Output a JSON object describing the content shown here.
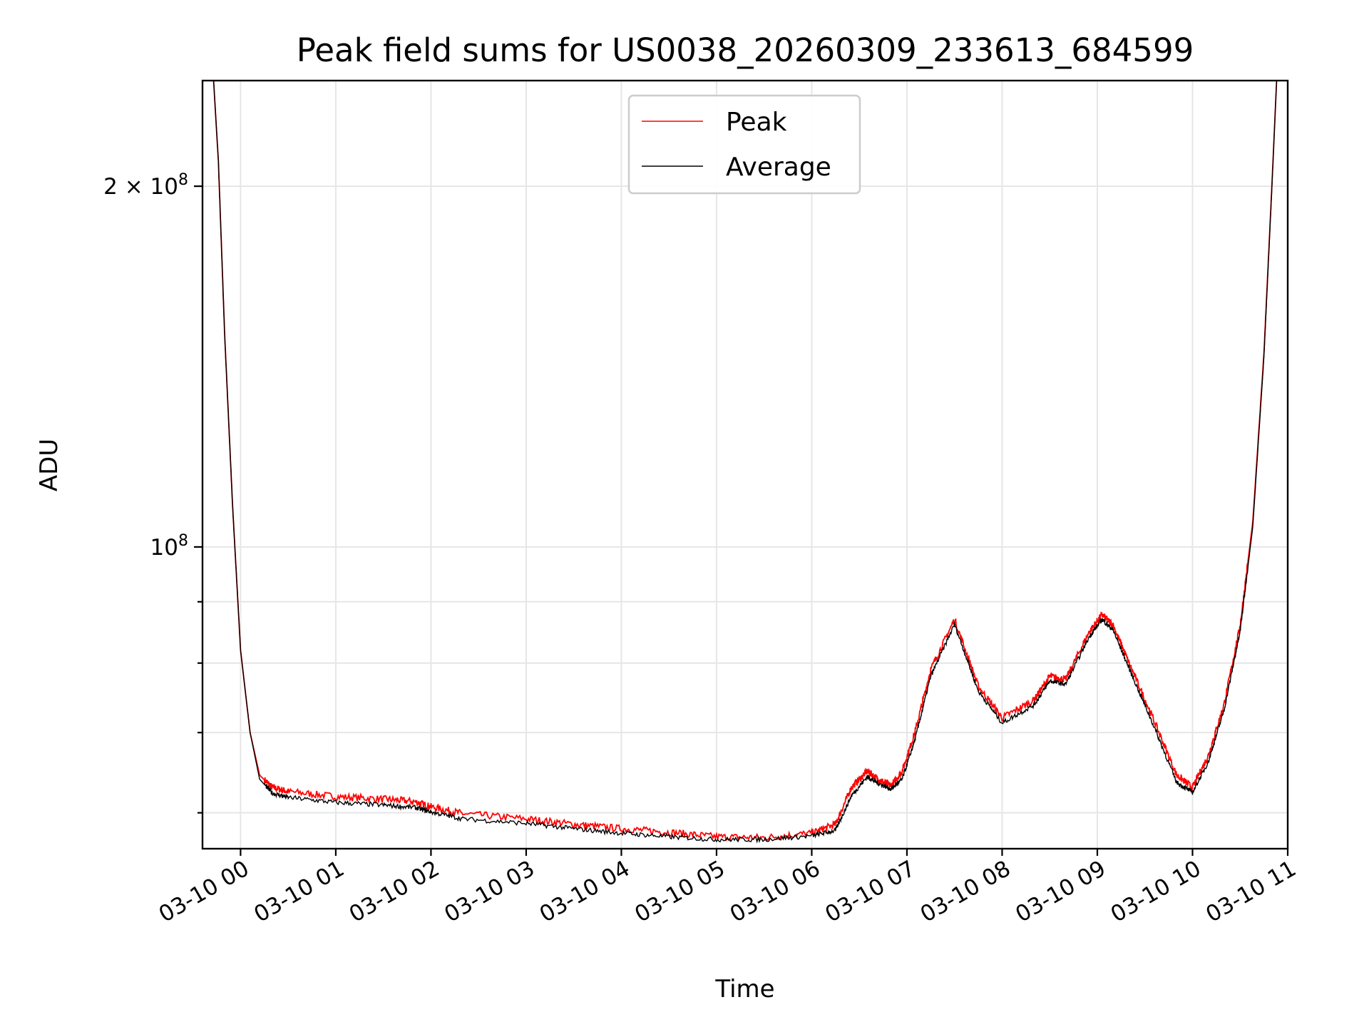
{
  "chart_data": {
    "type": "line",
    "title": "Peak field sums for US0038_20260309_233613_684599",
    "xlabel": "Time",
    "ylabel": "ADU",
    "y_scale": "log",
    "ylim": [
      56000000,
      245000000
    ],
    "xlim": [
      "2026-03-09 23:36",
      "2026-03-10 11:00"
    ],
    "grid": true,
    "legend": "upper-center",
    "x_ticks": [
      {
        "time": "2026-03-10 00:00",
        "label": "03-10 00"
      },
      {
        "time": "2026-03-10 01:00",
        "label": "03-10 01"
      },
      {
        "time": "2026-03-10 02:00",
        "label": "03-10 02"
      },
      {
        "time": "2026-03-10 03:00",
        "label": "03-10 03"
      },
      {
        "time": "2026-03-10 04:00",
        "label": "03-10 04"
      },
      {
        "time": "2026-03-10 05:00",
        "label": "03-10 05"
      },
      {
        "time": "2026-03-10 06:00",
        "label": "03-10 06"
      },
      {
        "time": "2026-03-10 07:00",
        "label": "03-10 07"
      },
      {
        "time": "2026-03-10 08:00",
        "label": "03-10 08"
      },
      {
        "time": "2026-03-10 09:00",
        "label": "03-10 09"
      },
      {
        "time": "2026-03-10 10:00",
        "label": "03-10 10"
      },
      {
        "time": "2026-03-10 11:00",
        "label": "03-10 11"
      }
    ],
    "y_ticks": [
      {
        "value": 100000000,
        "base": "10",
        "exp": "8",
        "mantissa": ""
      },
      {
        "value": 200000000,
        "base": "10",
        "exp": "8",
        "mantissa": "2 × "
      }
    ],
    "y_minor_ticks": [
      60000000,
      70000000,
      80000000,
      90000000
    ],
    "series": [
      {
        "name": "Peak",
        "color": "#ff0000",
        "x": [
          "2026-03-09 23:43",
          "2026-03-09 23:46",
          "2026-03-09 23:50",
          "2026-03-09 23:55",
          "2026-03-10 00:00",
          "2026-03-10 00:06",
          "2026-03-10 00:12",
          "2026-03-10 00:20",
          "2026-03-10 00:30",
          "2026-03-10 01:00",
          "2026-03-10 01:30",
          "2026-03-10 01:50",
          "2026-03-10 02:00",
          "2026-03-10 02:20",
          "2026-03-10 03:00",
          "2026-03-10 03:30",
          "2026-03-10 04:00",
          "2026-03-10 04:30",
          "2026-03-10 05:00",
          "2026-03-10 05:30",
          "2026-03-10 06:00",
          "2026-03-10 06:15",
          "2026-03-10 06:25",
          "2026-03-10 06:35",
          "2026-03-10 06:42",
          "2026-03-10 06:50",
          "2026-03-10 06:57",
          "2026-03-10 07:05",
          "2026-03-10 07:15",
          "2026-03-10 07:30",
          "2026-03-10 07:45",
          "2026-03-10 08:00",
          "2026-03-10 08:20",
          "2026-03-10 08:30",
          "2026-03-10 08:40",
          "2026-03-10 08:55",
          "2026-03-10 09:03",
          "2026-03-10 09:10",
          "2026-03-10 09:20",
          "2026-03-10 09:35",
          "2026-03-10 09:50",
          "2026-03-10 10:00",
          "2026-03-10 10:10",
          "2026-03-10 10:20",
          "2026-03-10 10:30",
          "2026-03-10 10:38",
          "2026-03-10 10:45",
          "2026-03-10 10:50",
          "2026-03-10 10:53"
        ],
        "y": [
          245000000,
          210000000,
          150000000,
          108000000,
          82000000,
          70000000,
          64500000,
          63000000,
          62500000,
          61900000,
          61600000,
          61300000,
          60700000,
          59900000,
          59300000,
          58700000,
          58200000,
          57800000,
          57300000,
          57200000,
          57700000,
          58700000,
          63000000,
          65000000,
          64000000,
          63200000,
          65000000,
          70000000,
          79000000,
          87000000,
          76500000,
          72000000,
          74500000,
          78000000,
          77500000,
          85000000,
          87800000,
          86000000,
          80000000,
          72000000,
          64500000,
          63000000,
          67000000,
          74000000,
          86000000,
          105000000,
          145000000,
          200000000,
          245000000
        ]
      },
      {
        "name": "Average",
        "color": "#000000",
        "x": [
          "2026-03-09 23:43",
          "2026-03-09 23:46",
          "2026-03-09 23:50",
          "2026-03-09 23:55",
          "2026-03-10 00:00",
          "2026-03-10 00:06",
          "2026-03-10 00:12",
          "2026-03-10 00:20",
          "2026-03-10 00:30",
          "2026-03-10 01:00",
          "2026-03-10 01:30",
          "2026-03-10 01:50",
          "2026-03-10 02:00",
          "2026-03-10 02:20",
          "2026-03-10 03:00",
          "2026-03-10 03:30",
          "2026-03-10 04:00",
          "2026-03-10 04:30",
          "2026-03-10 05:00",
          "2026-03-10 05:30",
          "2026-03-10 06:00",
          "2026-03-10 06:15",
          "2026-03-10 06:25",
          "2026-03-10 06:35",
          "2026-03-10 06:42",
          "2026-03-10 06:50",
          "2026-03-10 06:57",
          "2026-03-10 07:05",
          "2026-03-10 07:15",
          "2026-03-10 07:30",
          "2026-03-10 07:45",
          "2026-03-10 08:00",
          "2026-03-10 08:20",
          "2026-03-10 08:30",
          "2026-03-10 08:40",
          "2026-03-10 08:55",
          "2026-03-10 09:03",
          "2026-03-10 09:10",
          "2026-03-10 09:20",
          "2026-03-10 09:35",
          "2026-03-10 09:50",
          "2026-03-10 10:00",
          "2026-03-10 10:10",
          "2026-03-10 10:20",
          "2026-03-10 10:30",
          "2026-03-10 10:38",
          "2026-03-10 10:45",
          "2026-03-10 10:50",
          "2026-03-10 10:53"
        ],
        "y": [
          245000000,
          210000000,
          150000000,
          108000000,
          82000000,
          70000000,
          64000000,
          62300000,
          61800000,
          61200000,
          60900000,
          60600000,
          60100000,
          59300000,
          58800000,
          58200000,
          57700000,
          57300000,
          57000000,
          57000000,
          57400000,
          58000000,
          62000000,
          64300000,
          63500000,
          62800000,
          64000000,
          69000000,
          78000000,
          86200000,
          75800000,
          71300000,
          73800000,
          77300000,
          76800000,
          84200000,
          87000000,
          85200000,
          79200000,
          71200000,
          63600000,
          62400000,
          66200000,
          73200000,
          85000000,
          104000000,
          144000000,
          199000000,
          245000000
        ]
      }
    ]
  }
}
